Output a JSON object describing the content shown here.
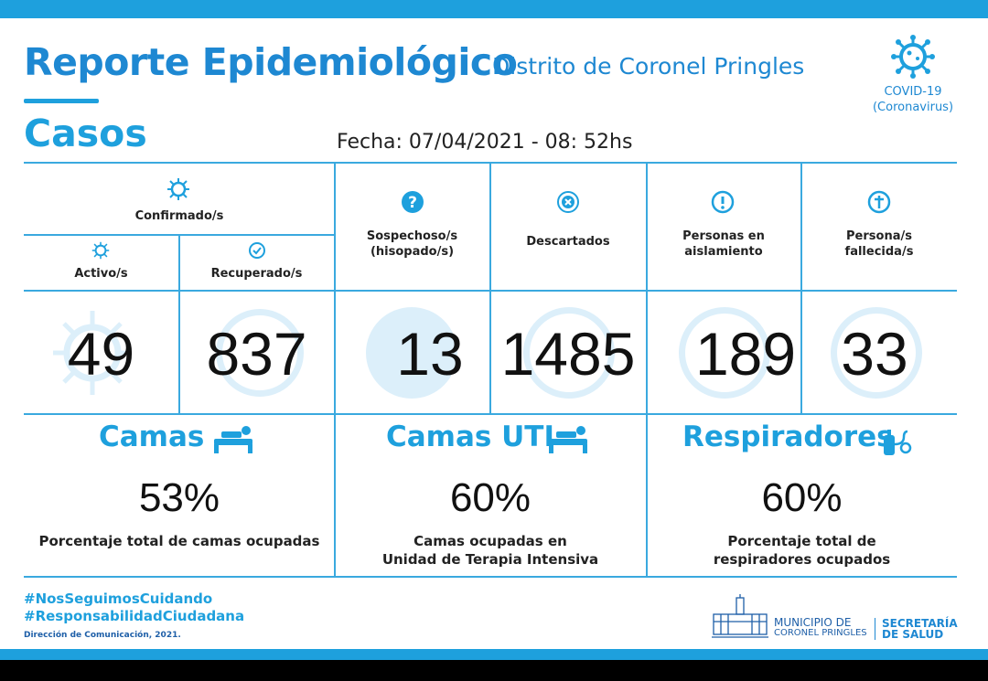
{
  "header": {
    "title": "Reporte Epidemiológico",
    "subtitle": "Distrito de Coronel Pringles",
    "section": "Casos",
    "fecha": "Fecha: 07/04/2021 - 08: 52hs",
    "covid_label_1": "COVID-19",
    "covid_label_2": "(Coronavirus)"
  },
  "columns": {
    "confirmados": "Confirmado/s",
    "activos": "Activo/s",
    "recuperados": "Recuperado/s",
    "sospechosos_1": "Sospechoso/s",
    "sospechosos_2": "(hisopado/s)",
    "descartados": "Descartados",
    "aislamiento_1": "Personas en",
    "aislamiento_2": "aislamiento",
    "fallecidos_1": "Persona/s",
    "fallecidos_2": "fallecida/s"
  },
  "values": {
    "activos": "49",
    "recuperados": "837",
    "sospechosos": "13",
    "descartados": "1485",
    "aislamiento": "189",
    "fallecidos": "33"
  },
  "stats": {
    "camas": {
      "title": "Camas",
      "value": "53%",
      "desc_1": "Porcentaje total de camas ocupadas",
      "desc_2": ""
    },
    "camas_uti": {
      "title": "Camas UTI",
      "value": "60%",
      "desc_1": "Camas ocupadas en",
      "desc_2": "Unidad de Terapia Intensiva"
    },
    "respiradores": {
      "title": "Respiradores",
      "value": "60%",
      "desc_1": "Porcentaje total de",
      "desc_2": "respiradores ocupados"
    }
  },
  "footer": {
    "hashtag_1": "#NosSeguimosCuidando",
    "hashtag_2": "#ResponsabilidadCiudadana",
    "credit": "Dirección de Comunicación, 2021.",
    "muni_1": "MUNICIPIO DE",
    "muni_2": "CORONEL PRINGLES",
    "sec_1": "SECRETARÍA",
    "sec_2": "DE SALUD"
  },
  "colors": {
    "accent": "#1ea0dd",
    "title": "#1e88d2",
    "line": "#3aa9df",
    "watermark": "#dceffa"
  },
  "icons": [
    "virus-icon",
    "check-circle-icon",
    "question-icon",
    "x-circle-icon",
    "exclamation-icon",
    "cross-icon",
    "bed-icon",
    "respirator-icon",
    "municipality-logo"
  ]
}
